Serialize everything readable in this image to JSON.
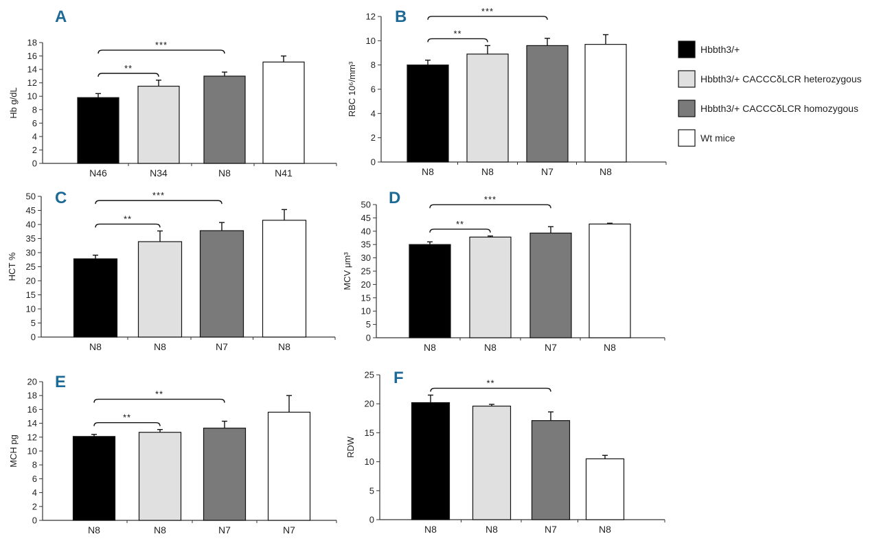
{
  "colors": {
    "panel_label": "#1e6a96",
    "axis": "#333333",
    "series_edge": "#111111"
  },
  "legend": {
    "items": [
      {
        "label": "Hbbth3/+",
        "color": "#000000"
      },
      {
        "label": "Hbbth3/+ CACCCδLCR heterozygous",
        "color": "#e0e0e0"
      },
      {
        "label": "Hbbth3/+ CACCCδLCR homozygous",
        "color": "#7a7a7a"
      },
      {
        "label": "Wt mice",
        "color": "#ffffff"
      }
    ]
  },
  "chart_data": [
    {
      "panel": "A",
      "type": "bar",
      "ylabel": "Hb g/dL",
      "ylim": [
        0,
        18
      ],
      "yticks": [
        0,
        2,
        4,
        6,
        8,
        10,
        12,
        14,
        16,
        18
      ],
      "categories": [
        "N46",
        "N34",
        "N8",
        "N41"
      ],
      "values": [
        9.8,
        11.5,
        13.0,
        15.1
      ],
      "errors": [
        0.6,
        0.9,
        0.6,
        0.9
      ],
      "significance": [
        {
          "from": 0,
          "to": 1,
          "label": "**"
        },
        {
          "from": 0,
          "to": 2,
          "label": "***"
        }
      ]
    },
    {
      "panel": "B",
      "type": "bar",
      "ylabel": "RBC 10⁶/mm³",
      "ylim": [
        0,
        12
      ],
      "yticks": [
        0,
        2,
        4,
        6,
        8,
        10,
        12
      ],
      "categories": [
        "N8",
        "N8",
        "N7",
        "N8"
      ],
      "values": [
        8.0,
        8.9,
        9.6,
        9.7
      ],
      "errors": [
        0.4,
        0.7,
        0.6,
        0.8
      ],
      "significance": [
        {
          "from": 0,
          "to": 1,
          "label": "**"
        },
        {
          "from": 0,
          "to": 2,
          "label": "***"
        }
      ]
    },
    {
      "panel": "C",
      "type": "bar",
      "ylabel": "HCT %",
      "ylim": [
        0,
        50
      ],
      "yticks": [
        0,
        5,
        10,
        15,
        20,
        25,
        30,
        35,
        40,
        45,
        50
      ],
      "categories": [
        "N8",
        "N8",
        "N7",
        "N8"
      ],
      "values": [
        27.8,
        33.9,
        37.8,
        41.5
      ],
      "errors": [
        1.3,
        3.8,
        2.9,
        3.8
      ],
      "significance": [
        {
          "from": 0,
          "to": 1,
          "label": "**"
        },
        {
          "from": 0,
          "to": 2,
          "label": "***"
        }
      ]
    },
    {
      "panel": "D",
      "type": "bar",
      "ylabel": "MCV μm³",
      "ylim": [
        0,
        50
      ],
      "yticks": [
        0,
        5,
        10,
        15,
        20,
        25,
        30,
        35,
        40,
        45,
        50
      ],
      "categories": [
        "N8",
        "N8",
        "N7",
        "N8"
      ],
      "values": [
        35.0,
        37.8,
        39.3,
        42.7
      ],
      "errors": [
        1.0,
        0.4,
        2.4,
        0.3
      ],
      "significance": [
        {
          "from": 0,
          "to": 1,
          "label": "**"
        },
        {
          "from": 0,
          "to": 2,
          "label": "***"
        }
      ]
    },
    {
      "panel": "E",
      "type": "bar",
      "ylabel": "MCH pg",
      "ylim": [
        0,
        20
      ],
      "yticks": [
        0,
        2,
        4,
        6,
        8,
        10,
        12,
        14,
        16,
        18,
        20
      ],
      "categories": [
        "N8",
        "N8",
        "N7",
        "N7"
      ],
      "values": [
        12.1,
        12.7,
        13.3,
        15.6
      ],
      "errors": [
        0.3,
        0.4,
        1.0,
        2.4
      ],
      "significance": [
        {
          "from": 0,
          "to": 1,
          "label": "**"
        },
        {
          "from": 0,
          "to": 2,
          "label": "**"
        }
      ]
    },
    {
      "panel": "F",
      "type": "bar",
      "ylabel": "RDW",
      "ylim": [
        0,
        25
      ],
      "yticks": [
        0,
        5,
        10,
        15,
        20,
        25
      ],
      "categories": [
        "N8",
        "N8",
        "N7",
        "N8"
      ],
      "values": [
        20.2,
        19.6,
        17.1,
        10.5
      ],
      "errors": [
        1.3,
        0.3,
        1.5,
        0.6
      ],
      "significance": [
        {
          "from": 0,
          "to": 2,
          "label": "**"
        }
      ]
    }
  ]
}
